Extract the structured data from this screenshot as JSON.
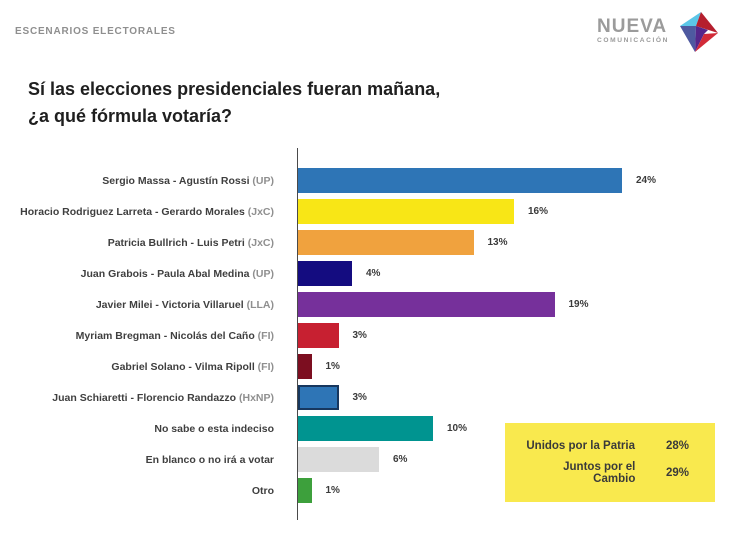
{
  "header": {
    "kicker": "ESCENARIOS ELECTORALES"
  },
  "logo": {
    "name": "NUEVA",
    "subname": "COMUNICACIÓN",
    "mark_colors": {
      "cyan": "#5bc6e8",
      "slate": "#4e59a0",
      "crimson": "#b51f2e",
      "purple": "#55268b",
      "red": "#d22b38"
    }
  },
  "title": {
    "line1": "Sí las elecciones presidenciales fueran mañana,",
    "line2": "¿a qué fórmula votaría?"
  },
  "chart_data": {
    "type": "bar",
    "orientation": "horizontal",
    "unit": "%",
    "xlim": [
      0,
      30
    ],
    "grid": false,
    "categories": [
      {
        "name": "Sergio Massa - Agustín Rossi",
        "party": "(UP)"
      },
      {
        "name": "Horacio Rodriguez Larreta - Gerardo Morales",
        "party": "(JxC)"
      },
      {
        "name": "Patricia Bullrich - Luis Petri",
        "party": "(JxC)"
      },
      {
        "name": "Juan Grabois - Paula Abal Medina",
        "party": "(UP)"
      },
      {
        "name": "Javier Milei - Victoria Villaruel",
        "party": "(LLA)"
      },
      {
        "name": "Myriam Bregman - Nicolás del Caño",
        "party": "(FI)"
      },
      {
        "name": "Gabriel Solano - Vilma Ripoll",
        "party": "(FI)"
      },
      {
        "name": "Juan Schiaretti - Florencio Randazzo",
        "party": "(HxNP)"
      },
      {
        "name": "No sabe o esta indeciso",
        "party": ""
      },
      {
        "name": "En blanco o no irá a votar",
        "party": ""
      },
      {
        "name": "Otro",
        "party": ""
      }
    ],
    "values": [
      24,
      16,
      13,
      4,
      19,
      3,
      1,
      3,
      10,
      6,
      1
    ],
    "value_labels": [
      "24%",
      "16%",
      "13%",
      "4%",
      "19%",
      "3%",
      "1%",
      "3%",
      "10%",
      "6%",
      "1%"
    ],
    "bar_colors": [
      "#2e75b6",
      "#f8e616",
      "#f0a23e",
      "#140c80",
      "#76309b",
      "#c72031",
      "#7c0e20",
      "#2e75b6",
      "#009490",
      "#dbdbdb",
      "#3da03c"
    ],
    "bar_border_colors": [
      null,
      null,
      null,
      null,
      null,
      null,
      null,
      "#17375e",
      null,
      null,
      null
    ]
  },
  "legend_box": {
    "background": "#f9e94e",
    "rows": [
      {
        "label": "Unidos por la Patria",
        "value": "28%"
      },
      {
        "label": "Juntos por el Cambio",
        "value": "29%"
      }
    ]
  }
}
